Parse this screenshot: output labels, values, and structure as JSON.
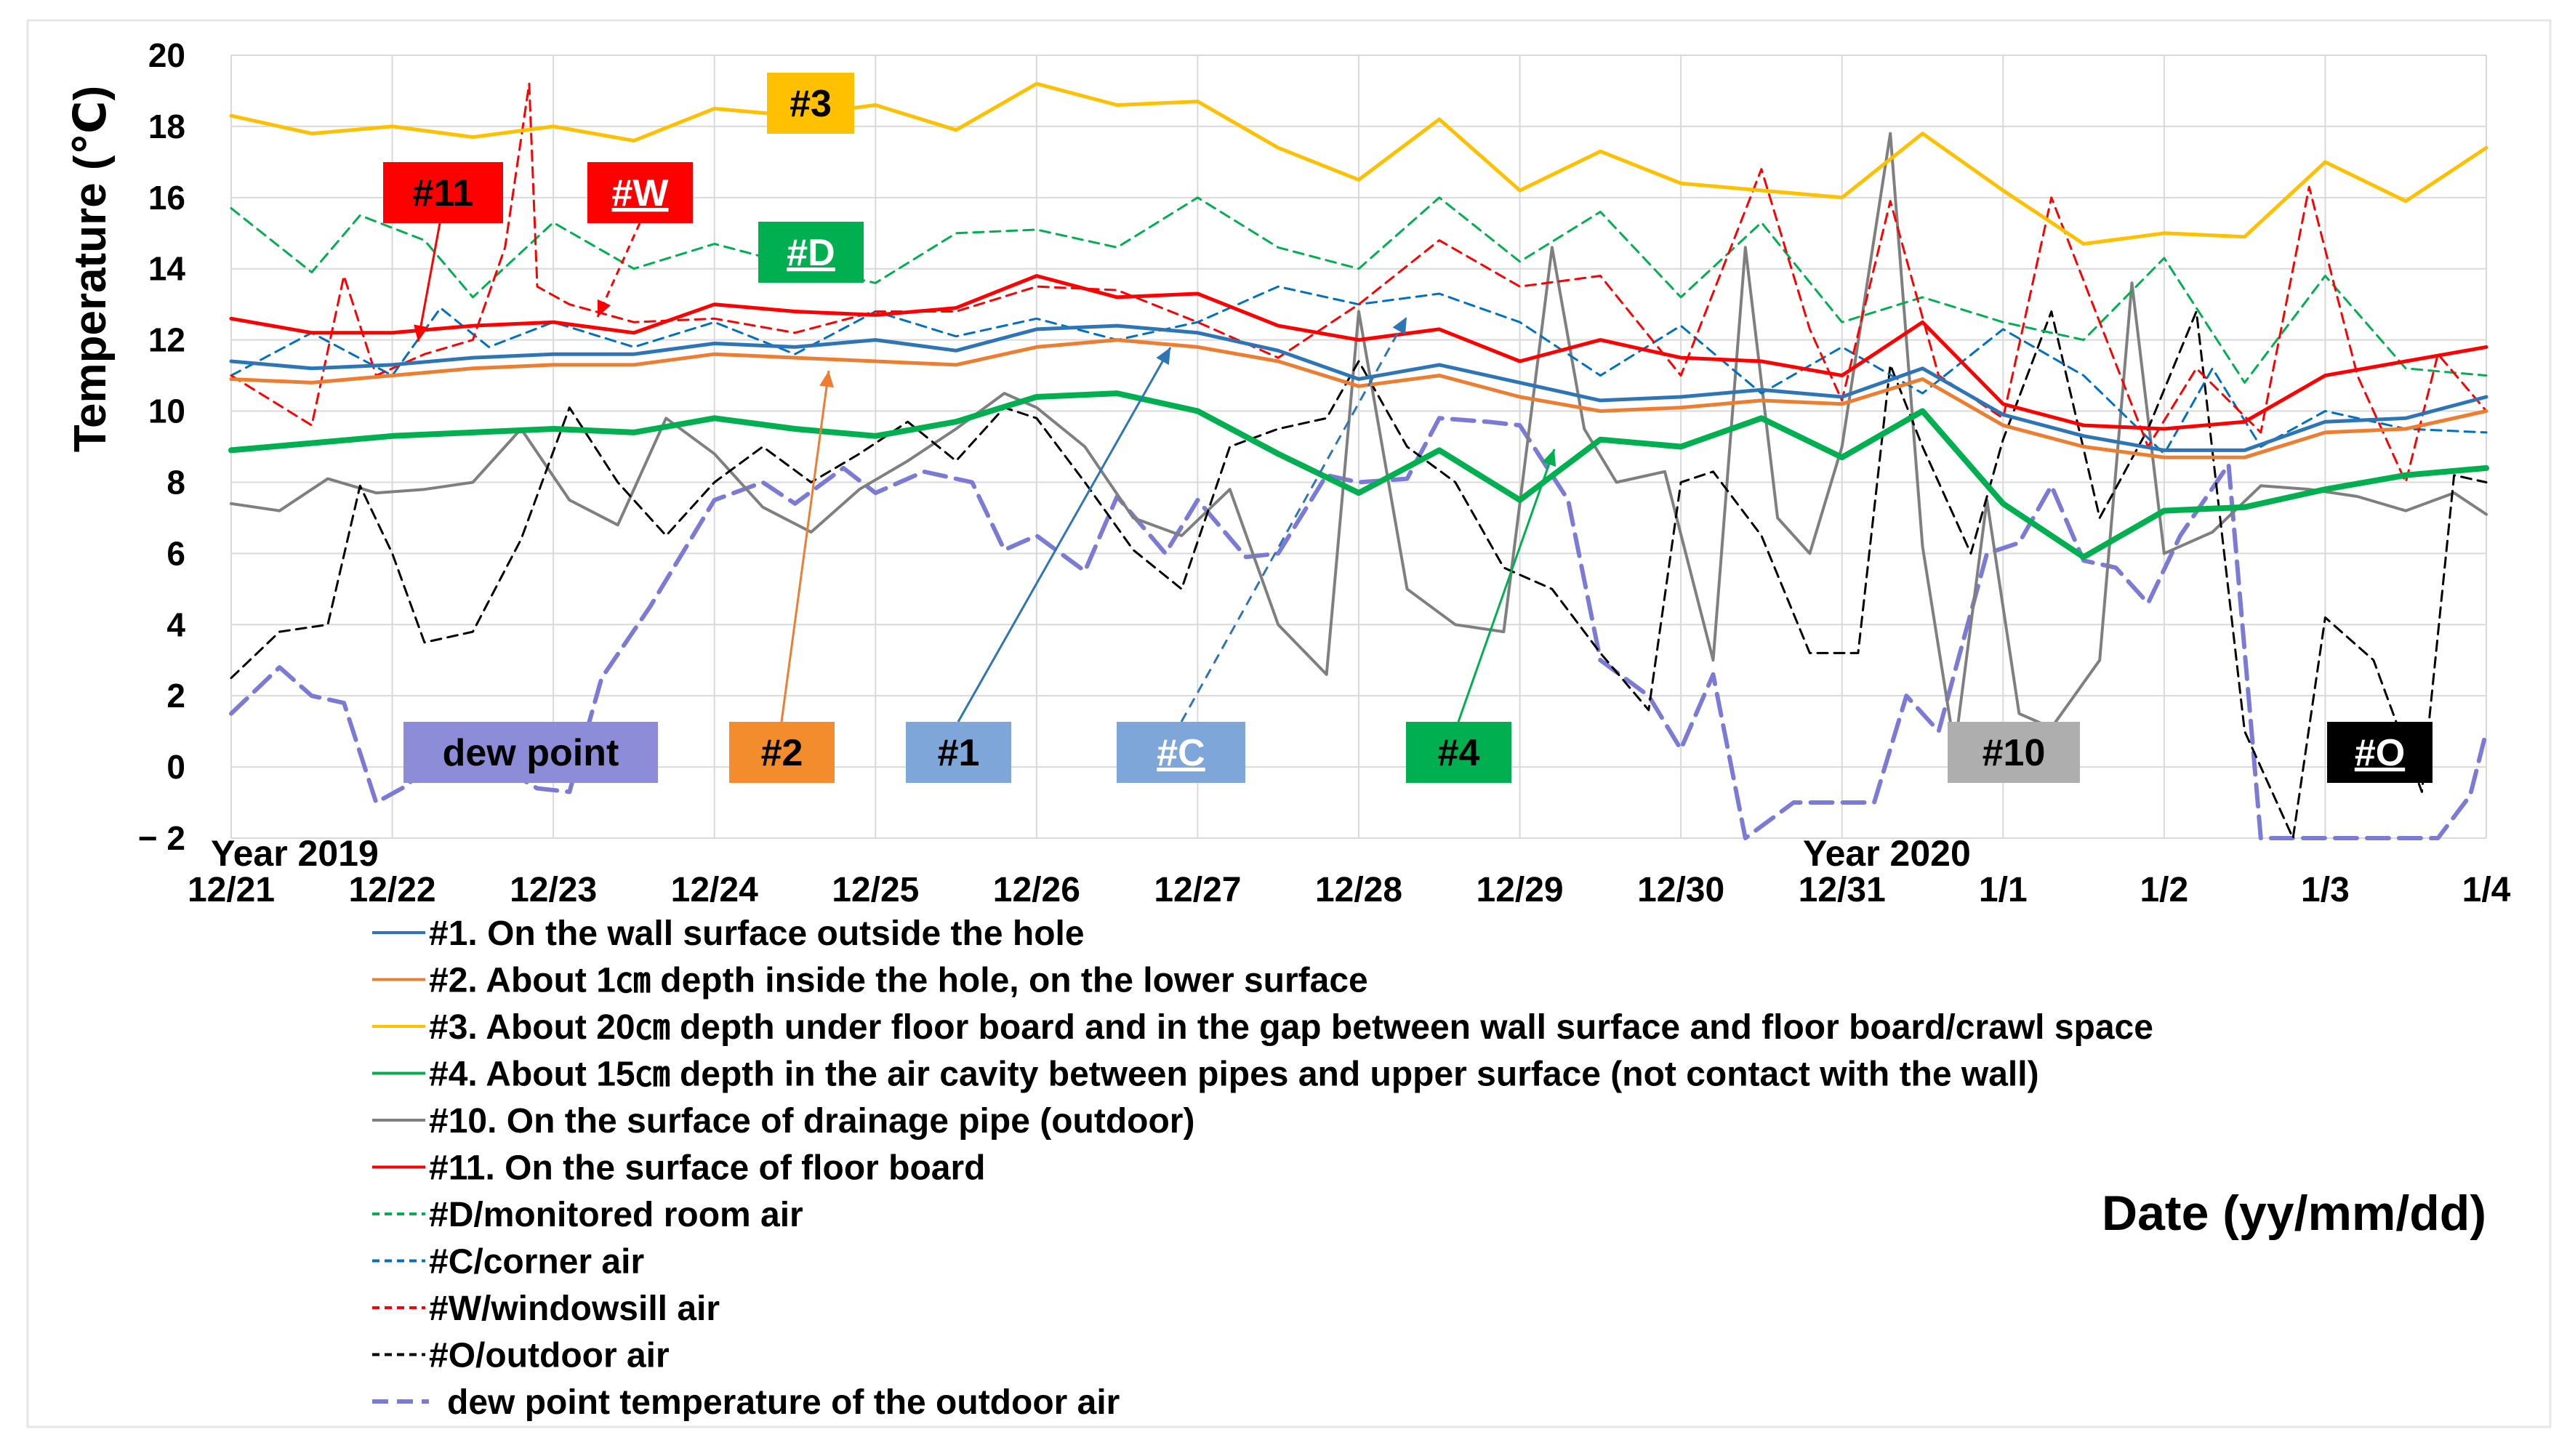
{
  "chart_data": {
    "type": "line",
    "ylabel": "Temperature (℃)",
    "xlabel": "Date (yy/mm/dd)",
    "ylim": [
      -2,
      20
    ],
    "yticks": [
      20,
      18,
      16,
      14,
      12,
      10,
      8,
      6,
      4,
      2,
      0,
      -2
    ],
    "ytick_labels": [
      "20",
      "18",
      "16",
      "14",
      "12",
      "10",
      "8",
      "6",
      "4",
      "2",
      "0",
      "− 2"
    ],
    "xlim": [
      0,
      14
    ],
    "xtick_labels": [
      "12/21",
      "12/22",
      "12/23",
      "12/24",
      "12/25",
      "12/26",
      "12/27",
      "12/28",
      "12/29",
      "12/30",
      "12/31",
      "1/1",
      "1/2",
      "1/3",
      "1/4"
    ],
    "year_labels": [
      "Year 2019",
      "Year 2020"
    ],
    "grid": true,
    "series": [
      {
        "id": "s1",
        "name": "#1. On the wall surface outside the hole",
        "color": "#2E75B6",
        "dash": "solid",
        "width": 5,
        "x": [
          0,
          0.5,
          1,
          1.5,
          2,
          2.5,
          3,
          3.5,
          4,
          4.5,
          5,
          5.5,
          6,
          6.5,
          7,
          7.5,
          8,
          8.5,
          9,
          9.5,
          10,
          10.5,
          11,
          11.5,
          12,
          12.5,
          13,
          13.5,
          14
        ],
        "y": [
          11.4,
          11.2,
          11.3,
          11.5,
          11.6,
          11.6,
          11.9,
          11.8,
          12.0,
          11.7,
          12.3,
          12.4,
          12.2,
          11.7,
          10.9,
          11.3,
          10.8,
          10.3,
          10.4,
          10.6,
          10.4,
          11.2,
          9.9,
          9.3,
          8.9,
          8.9,
          9.7,
          9.8,
          10.4
        ]
      },
      {
        "id": "s2",
        "name": "#2. About 1㎝ depth inside the hole, on the lower surface",
        "color": "#ED7D31",
        "dash": "solid",
        "width": 5,
        "x": [
          0,
          0.5,
          1,
          1.5,
          2,
          2.5,
          3,
          3.5,
          4,
          4.5,
          5,
          5.5,
          6,
          6.5,
          7,
          7.5,
          8,
          8.5,
          9,
          9.5,
          10,
          10.5,
          11,
          11.5,
          12,
          12.5,
          13,
          13.5,
          14
        ],
        "y": [
          10.9,
          10.8,
          11.0,
          11.2,
          11.3,
          11.3,
          11.6,
          11.5,
          11.4,
          11.3,
          11.8,
          12.0,
          11.8,
          11.4,
          10.7,
          11.0,
          10.4,
          10.0,
          10.1,
          10.3,
          10.2,
          10.9,
          9.6,
          9.0,
          8.7,
          8.7,
          9.4,
          9.5,
          10.0
        ]
      },
      {
        "id": "s3",
        "name": "#3. About 20㎝ depth under floor board and in the gap between wall surface and floor board/crawl space",
        "color": "#FFC000",
        "dash": "solid",
        "width": 5,
        "x": [
          0,
          0.5,
          1,
          1.5,
          2,
          2.5,
          3,
          3.5,
          4,
          4.5,
          5,
          5.5,
          6,
          6.5,
          7,
          7.5,
          8,
          8.5,
          9,
          9.5,
          10,
          10.5,
          11,
          11.5,
          12,
          12.5,
          13,
          13.5,
          14
        ],
        "y": [
          18.3,
          17.8,
          18.0,
          17.7,
          18.0,
          17.6,
          18.5,
          18.3,
          18.6,
          17.9,
          19.2,
          18.6,
          18.7,
          17.4,
          16.5,
          18.2,
          16.2,
          17.3,
          16.4,
          16.2,
          16.0,
          17.8,
          16.2,
          14.7,
          15.0,
          14.9,
          17.0,
          15.9,
          17.4
        ]
      },
      {
        "id": "s4",
        "name": "#4. About 15㎝ depth in the air cavity between pipes and upper surface (not contact with the wall)",
        "color": "#00B050",
        "dash": "solid",
        "width": 8,
        "x": [
          0,
          0.5,
          1,
          1.5,
          2,
          2.5,
          3,
          3.5,
          4,
          4.5,
          5,
          5.5,
          6,
          6.5,
          7,
          7.5,
          8,
          8.5,
          9,
          9.5,
          10,
          10.5,
          11,
          11.5,
          12,
          12.5,
          13,
          13.5,
          14
        ],
        "y": [
          8.9,
          9.1,
          9.3,
          9.4,
          9.5,
          9.4,
          9.8,
          9.5,
          9.3,
          9.7,
          10.4,
          10.5,
          10.0,
          8.8,
          7.7,
          8.9,
          7.5,
          9.2,
          9.0,
          9.8,
          8.7,
          10.0,
          7.4,
          5.9,
          7.2,
          7.3,
          7.8,
          8.2,
          8.4
        ]
      },
      {
        "id": "s10",
        "name": "#10. On the surface of drainage pipe (outdoor)",
        "color": "#7F7F7F",
        "dash": "solid",
        "width": 4,
        "x": [
          0,
          0.3,
          0.6,
          0.9,
          1.2,
          1.5,
          1.6,
          1.8,
          2.1,
          2.4,
          2.7,
          3.0,
          3.3,
          3.6,
          3.9,
          4.2,
          4.5,
          4.8,
          5.0,
          5.3,
          5.6,
          5.9,
          6.2,
          6.5,
          6.8,
          7.0,
          7.3,
          7.6,
          7.9,
          8.2,
          8.4,
          8.6,
          8.9,
          9.2,
          9.4,
          9.6,
          9.8,
          10.0,
          10.3,
          10.5,
          10.7,
          10.9,
          11.1,
          11.3,
          11.6,
          11.8,
          12.0,
          12.3,
          12.6,
          12.9,
          13.2,
          13.5,
          13.8,
          14
        ],
        "y": [
          7.4,
          7.2,
          8.1,
          7.7,
          7.8,
          8.0,
          8.5,
          9.5,
          7.5,
          6.8,
          9.8,
          8.8,
          7.3,
          6.6,
          7.8,
          8.6,
          9.5,
          10.5,
          10.1,
          9.0,
          7.0,
          6.5,
          7.8,
          4.0,
          2.6,
          12.8,
          5.0,
          4.0,
          3.8,
          14.6,
          9.5,
          8.0,
          8.3,
          3.0,
          14.6,
          7.0,
          6.0,
          9.0,
          17.8,
          6.2,
          0.5,
          7.5,
          1.5,
          1.1,
          3.0,
          13.6,
          6.0,
          6.6,
          7.9,
          7.8,
          7.6,
          7.2,
          7.7,
          7.1
        ]
      },
      {
        "id": "s11",
        "name": "#11. On the surface of floor board",
        "color": "#FF0000",
        "dash": "solid",
        "width": 5,
        "x": [
          0,
          0.5,
          1,
          1.5,
          2,
          2.5,
          3,
          3.5,
          4,
          4.5,
          5,
          5.5,
          6,
          6.5,
          7,
          7.5,
          8,
          8.5,
          9,
          9.5,
          10,
          10.5,
          11,
          11.5,
          12,
          12.5,
          13,
          13.5,
          14
        ],
        "y": [
          12.6,
          12.2,
          12.2,
          12.4,
          12.5,
          12.2,
          13.0,
          12.8,
          12.7,
          12.9,
          13.8,
          13.2,
          13.3,
          12.4,
          12.0,
          12.3,
          11.4,
          12.0,
          11.5,
          11.4,
          11.0,
          12.5,
          10.2,
          9.6,
          9.5,
          9.7,
          11.0,
          11.4,
          11.8
        ]
      },
      {
        "id": "sD",
        "name": "#D/monitored room air",
        "color": "#00B050",
        "dash": "dash",
        "width": 3,
        "x": [
          0,
          0.5,
          0.8,
          1.2,
          1.5,
          2,
          2.5,
          3,
          3.5,
          4,
          4.5,
          5,
          5.5,
          6,
          6.5,
          7,
          7.5,
          8,
          8.5,
          9,
          9.5,
          10,
          10.5,
          11,
          11.5,
          12,
          12.5,
          13,
          13.5,
          14
        ],
        "y": [
          15.7,
          13.9,
          15.5,
          14.8,
          13.2,
          15.3,
          14.0,
          14.7,
          14.1,
          13.6,
          15.0,
          15.1,
          14.6,
          16.0,
          14.6,
          14.0,
          16.0,
          14.2,
          15.6,
          13.2,
          15.3,
          12.5,
          13.2,
          12.5,
          12.0,
          14.3,
          10.8,
          13.8,
          11.2,
          11.0
        ]
      },
      {
        "id": "sC",
        "name": "#C/corner air",
        "color": "#0070C0",
        "dash": "dash",
        "width": 3,
        "x": [
          0,
          0.5,
          1,
          1.3,
          1.6,
          2,
          2.5,
          3,
          3.5,
          4,
          4.5,
          5,
          5.5,
          6,
          6.5,
          7,
          7.5,
          8,
          8.5,
          9,
          9.5,
          10,
          10.5,
          11,
          11.5,
          12,
          12.3,
          12.6,
          13,
          13.5,
          14
        ],
        "y": [
          11.0,
          12.2,
          11.0,
          12.9,
          11.8,
          12.5,
          11.8,
          12.5,
          11.6,
          12.8,
          12.1,
          12.6,
          12.0,
          12.5,
          13.5,
          13.0,
          13.3,
          12.5,
          11.0,
          12.4,
          10.5,
          11.8,
          10.5,
          12.3,
          11.0,
          8.8,
          11.2,
          9.0,
          10.0,
          9.5,
          9.4
        ]
      },
      {
        "id": "sW",
        "name": "#W/windowsill air",
        "color": "#FF0000",
        "dash": "dash",
        "width": 3,
        "x": [
          0,
          0.5,
          0.7,
          0.9,
          1.2,
          1.5,
          1.7,
          1.85,
          1.9,
          2.1,
          2.5,
          3,
          3.5,
          4,
          4.5,
          5,
          5.5,
          6,
          6.5,
          7,
          7.5,
          8,
          8.5,
          9,
          9.5,
          9.8,
          10,
          10.3,
          10.6,
          11,
          11.3,
          11.6,
          11.9,
          12.2,
          12.6,
          12.9,
          13.2,
          13.5,
          13.7,
          14
        ],
        "y": [
          11.0,
          9.6,
          13.8,
          11.0,
          11.6,
          12.0,
          14.6,
          19.2,
          13.5,
          13.0,
          12.5,
          12.6,
          12.2,
          12.8,
          12.8,
          13.5,
          13.4,
          12.5,
          11.5,
          13.0,
          14.8,
          13.5,
          13.8,
          11.0,
          16.8,
          12.3,
          10.3,
          15.9,
          11.0,
          9.8,
          16.0,
          12.5,
          9.0,
          11.2,
          9.4,
          16.3,
          11.0,
          8.0,
          11.6,
          10.0
        ]
      },
      {
        "id": "sO",
        "name": "#O/outdoor air",
        "color": "#000000",
        "dash": "dash",
        "width": 3,
        "x": [
          0,
          0.3,
          0.6,
          0.8,
          1.0,
          1.2,
          1.5,
          1.8,
          2.1,
          2.4,
          2.7,
          3.0,
          3.3,
          3.6,
          3.9,
          4.2,
          4.5,
          4.8,
          5.0,
          5.3,
          5.6,
          5.9,
          6.2,
          6.5,
          6.8,
          7.0,
          7.3,
          7.6,
          7.9,
          8.2,
          8.5,
          8.8,
          9.0,
          9.2,
          9.5,
          9.8,
          10.1,
          10.3,
          10.5,
          10.8,
          11.0,
          11.3,
          11.6,
          11.9,
          12.2,
          12.5,
          12.8,
          13.0,
          13.3,
          13.6,
          13.8,
          14
        ],
        "y": [
          2.5,
          3.8,
          4.0,
          7.9,
          6.0,
          3.5,
          3.8,
          6.4,
          10.1,
          8.0,
          6.5,
          8.0,
          9.0,
          8.0,
          8.8,
          9.7,
          8.6,
          10.1,
          9.8,
          8.0,
          6.1,
          5.0,
          9.0,
          9.5,
          9.8,
          11.4,
          9.0,
          8.0,
          5.6,
          5.0,
          3.2,
          1.6,
          8.0,
          8.3,
          6.5,
          3.2,
          3.2,
          11.3,
          9.0,
          6.0,
          9.2,
          12.8,
          7.0,
          9.5,
          12.8,
          1.0,
          -2.2,
          4.2,
          3.0,
          -0.7,
          8.2,
          8.0
        ]
      },
      {
        "id": "sDP",
        "name": "dew point temperature of the outdoor air",
        "color": "#7B7BD6",
        "dash": "longdash",
        "width": 6,
        "x": [
          0,
          0.3,
          0.5,
          0.7,
          0.9,
          1.1,
          1.3,
          1.6,
          1.9,
          2.1,
          2.3,
          2.6,
          2.8,
          3.0,
          3.3,
          3.5,
          3.8,
          4.0,
          4.3,
          4.6,
          4.8,
          5.0,
          5.3,
          5.5,
          5.8,
          6.0,
          6.3,
          6.5,
          6.8,
          7.0,
          7.3,
          7.5,
          7.8,
          8.0,
          8.3,
          8.5,
          8.8,
          9.0,
          9.2,
          9.4,
          9.7,
          9.9,
          10.2,
          10.4,
          10.6,
          10.9,
          11.1,
          11.3,
          11.5,
          11.7,
          11.9,
          12.1,
          12.4,
          12.6,
          12.9,
          13.2,
          13.5,
          13.7,
          13.9,
          14
        ],
        "y": [
          1.5,
          2.8,
          2.0,
          1.8,
          -1.0,
          -0.5,
          0.8,
          0.2,
          -0.6,
          -0.7,
          2.5,
          4.5,
          6.0,
          7.5,
          8.0,
          7.4,
          8.4,
          7.7,
          8.3,
          8.0,
          6.1,
          6.5,
          5.5,
          7.6,
          6.0,
          7.5,
          5.9,
          6.0,
          8.2,
          8.0,
          8.1,
          9.8,
          9.7,
          9.6,
          7.5,
          3.0,
          2.0,
          0.5,
          2.6,
          -2.2,
          -1.0,
          -1.0,
          -1.0,
          2.0,
          1.0,
          6.0,
          6.3,
          7.9,
          5.8,
          5.6,
          4.6,
          6.5,
          8.5,
          -2.2,
          -2.2,
          -2.2,
          -2.2,
          -2.2,
          -0.8,
          1.0
        ]
      }
    ],
    "callouts": [
      {
        "id": "dp",
        "text": "dew point",
        "bg": "#8C8CD9",
        "fg": "#000000",
        "underline": false
      },
      {
        "id": "c2",
        "text": "#2",
        "bg": "#F28C2C",
        "fg": "#000000",
        "underline": false
      },
      {
        "id": "c1",
        "text": "#1",
        "bg": "#7FA6D9",
        "fg": "#000000",
        "underline": false
      },
      {
        "id": "cC",
        "text": "#C",
        "bg": "#7FA6D9",
        "fg": "#ffffff",
        "underline": true
      },
      {
        "id": "c4",
        "text": "#4",
        "bg": "#00B050",
        "fg": "#000000",
        "underline": false
      },
      {
        "id": "c10",
        "text": "#10",
        "bg": "#AEAEAE",
        "fg": "#000000",
        "underline": false
      },
      {
        "id": "cO",
        "text": "#O",
        "bg": "#000000",
        "fg": "#ffffff",
        "underline": true
      },
      {
        "id": "c3",
        "text": "#3",
        "bg": "#FFC000",
        "fg": "#000000",
        "underline": false
      },
      {
        "id": "c11",
        "text": "#11",
        "bg": "#FF0000",
        "fg": "#000000",
        "underline": false
      },
      {
        "id": "cW",
        "text": "#W",
        "bg": "#FF0000",
        "fg": "#ffffff",
        "underline": true
      },
      {
        "id": "cD",
        "text": "#D",
        "bg": "#00B050",
        "fg": "#ffffff",
        "underline": true
      }
    ]
  }
}
